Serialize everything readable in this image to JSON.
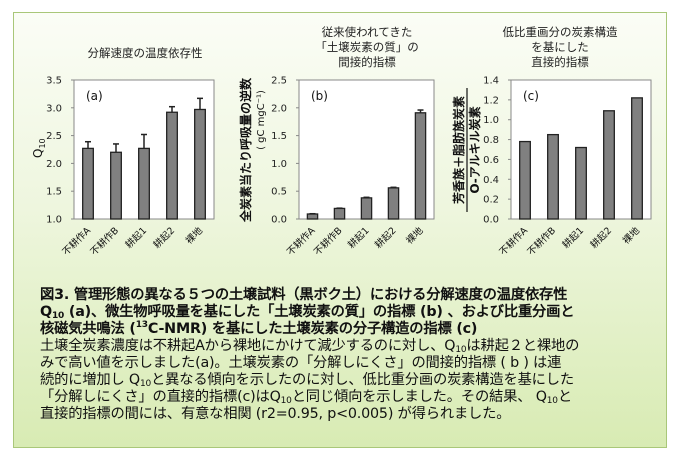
{
  "frame_colors": {
    "border": "#a9c779",
    "bar": "#808080"
  },
  "chart_data": [
    {
      "type": "bar",
      "panel_label": "(a)",
      "title": [
        "分解速度の温度依存性"
      ],
      "ylabel": "Q10",
      "ylabel_main": "Q",
      "ylabel_sub": "10",
      "categories": [
        "不耕作A",
        "不耕作B",
        "耕起1",
        "耕起2",
        "裸地"
      ],
      "values": [
        2.27,
        2.2,
        2.27,
        2.92,
        2.97
      ],
      "errors": [
        0.12,
        0.15,
        0.25,
        0.1,
        0.2
      ],
      "ylim": [
        1.0,
        3.5
      ],
      "yticks": [
        "1.0",
        "1.5",
        "2.0",
        "2.5",
        "3.0",
        "3.5"
      ],
      "grid": false
    },
    {
      "type": "bar",
      "panel_label": "(b)",
      "title": [
        "従来使われてきた",
        "「土壌炭素の質」の",
        "間接的指標"
      ],
      "ylabel_lines": [
        "全炭素当たり呼吸量の逆数",
        "( gC mgC⁻¹)"
      ],
      "categories": [
        "不耕作A",
        "不耕作B",
        "耕起1",
        "耕起2",
        "裸地"
      ],
      "values": [
        0.09,
        0.19,
        0.38,
        0.56,
        1.91
      ],
      "errors": [
        0.005,
        0.005,
        0.01,
        0.01,
        0.05
      ],
      "ylim": [
        0.0,
        2.5
      ],
      "yticks": [
        "0.0",
        "0.5",
        "1.0",
        "1.5",
        "2.0",
        "2.5"
      ],
      "grid": false
    },
    {
      "type": "bar",
      "panel_label": "(c)",
      "title": [
        "低比重画分の炭素構造",
        "を基にした",
        "直接的指標"
      ],
      "ylabel_numerator": "芳香族＋脂肪族炭素",
      "ylabel_denominator": "O-アルキル炭素",
      "categories": [
        "不耕作A",
        "不耕作B",
        "耕起1",
        "耕起2",
        "裸地"
      ],
      "values": [
        0.78,
        0.85,
        0.72,
        1.09,
        1.22
      ],
      "ylim": [
        0.0,
        1.4
      ],
      "yticks": [
        "0.0",
        "0.2",
        "0.4",
        "0.6",
        "0.8",
        "1.0",
        "1.2",
        "1.4"
      ],
      "grid": false
    }
  ],
  "caption": {
    "lines": [
      {
        "bold": true,
        "parts": [
          {
            "t": "図3. 管理形態の異なる５つの土壌試料（黒ボク土）における分解速度の温度依存性"
          }
        ]
      },
      {
        "bold": true,
        "parts": [
          {
            "t": "Q"
          },
          {
            "t": "10",
            "sub": true
          },
          {
            "t": " (a)、微生物呼吸量を基にした「土壌炭素の質」の指標 (b) 、および比重分画と"
          }
        ]
      },
      {
        "bold": true,
        "parts": [
          {
            "t": "核磁気共鳴法 ("
          },
          {
            "t": "13",
            "sup": true
          },
          {
            "t": "C-NMR) を基にした土壌炭素の分子構造の指標 (c)"
          }
        ]
      },
      {
        "bold": false,
        "parts": [
          {
            "t": "土壌全炭素濃度は不耕起Aから裸地にかけて減少するのに対し、Q"
          },
          {
            "t": "10",
            "sub": true
          },
          {
            "t": "は耕起２と裸地の"
          }
        ]
      },
      {
        "bold": false,
        "parts": [
          {
            "t": "みで高い値を示しました(a)。土壌炭素の「分解しにくさ」の間接的指標 ( b ) は連"
          }
        ]
      },
      {
        "bold": false,
        "parts": [
          {
            "t": "続的に増加し Q"
          },
          {
            "t": "10",
            "sub": true
          },
          {
            "t": "と異なる傾向を示したのに対し、低比重分画の炭素構造を基にした"
          }
        ]
      },
      {
        "bold": false,
        "parts": [
          {
            "t": "「分解しにくさ」の直接的指標(c)はQ"
          },
          {
            "t": "10",
            "sub": true
          },
          {
            "t": "と同じ傾向を示しました。その結果、 Q"
          },
          {
            "t": "10",
            "sub": true
          },
          {
            "t": "と"
          }
        ]
      },
      {
        "bold": false,
        "parts": [
          {
            "t": "直接的指標の間には、有意な相関 (r2=0.95, p<0.005) が得られました。"
          }
        ]
      }
    ]
  }
}
